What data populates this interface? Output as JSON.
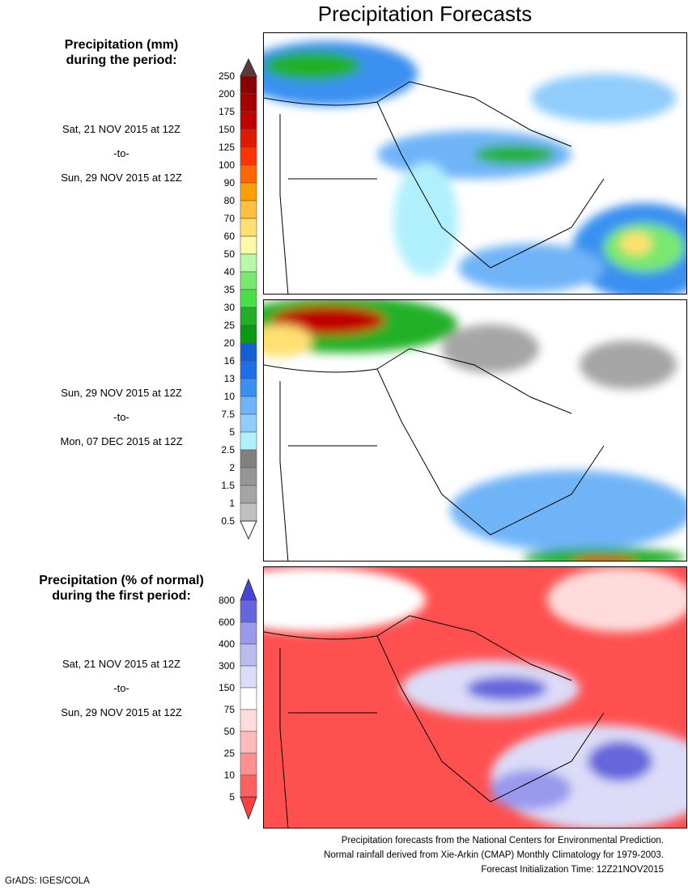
{
  "title": "Precipitation Forecasts",
  "precip_legend": {
    "heading_line1": "Precipitation (mm)",
    "heading_line2": "during the period:",
    "levels": [
      "250",
      "200",
      "175",
      "150",
      "125",
      "100",
      "90",
      "80",
      "70",
      "60",
      "50",
      "40",
      "35",
      "30",
      "25",
      "20",
      "16",
      "13",
      "10",
      "7.5",
      "5",
      "2.5",
      "2",
      "1.5",
      "1",
      "0.5"
    ],
    "colors": [
      "#8b0000",
      "#a50000",
      "#c00000",
      "#e01a00",
      "#ff3300",
      "#ff6600",
      "#ffa000",
      "#ffc040",
      "#ffe070",
      "#fff8a8",
      "#b8f8a8",
      "#78e870",
      "#48e048",
      "#20b028",
      "#0a9a10",
      "#1560d0",
      "#1e6ee8",
      "#3a90f0",
      "#70b4f8",
      "#90ccfc",
      "#b0f0fc",
      "#808080",
      "#959595",
      "#a5a5a5",
      "#c0c0c0"
    ],
    "top_color": "#5a3a38",
    "bottom_color": "#ffffff"
  },
  "period1": {
    "start": "Sat, 21 NOV 2015 at 12Z",
    "sep": "-to-",
    "end": "Sun, 29 NOV 2015 at 12Z"
  },
  "period2": {
    "start": "Sun, 29 NOV 2015 at 12Z",
    "sep": "-to-",
    "end": "Mon, 07 DEC 2015 at 12Z"
  },
  "pct_legend": {
    "heading_line1": "Precipitation (% of normal)",
    "heading_line2": "during the first period:",
    "levels": [
      "800",
      "600",
      "400",
      "300",
      "150",
      "75",
      "50",
      "25",
      "10",
      "5"
    ],
    "colors": [
      "#6666dd",
      "#9999ee",
      "#bbbbf0",
      "#dcdcf8",
      "#ffffff",
      "#ffdcdc",
      "#ffbaba",
      "#ff9090",
      "#ff6060"
    ],
    "top_color": "#4444dd",
    "bottom_color": "#ff4040"
  },
  "period3": {
    "start": "Sat, 21 NOV 2015 at 12Z",
    "sep": "-to-",
    "end": "Sun, 29 NOV 2015 at 12Z"
  },
  "credits": {
    "line1": "Precipitation forecasts from the National Centers for Environmental Prediction.",
    "line2": "Normal rainfall derived from Xie-Arkin (CMAP) Monthly Climatology for 1979-2003.",
    "line3": "Forecast Initialization Time: 12Z21NOV2015"
  },
  "footer": "GrADS: IGES/COLA"
}
